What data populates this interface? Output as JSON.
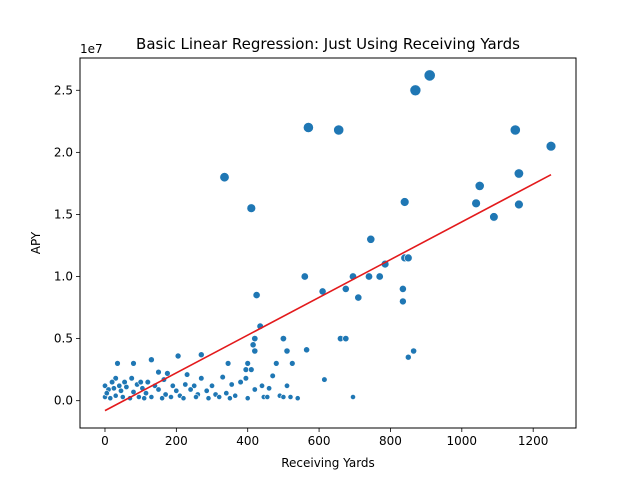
{
  "chart_data": {
    "type": "scatter",
    "title": "Basic Linear Regression: Just Using Receiving Yards",
    "xlabel": "Receiving Yards",
    "ylabel": "APY",
    "y_offset_label": "1e7",
    "xlim": [
      -70,
      1320
    ],
    "ylim": [
      -2200000,
      27600000
    ],
    "x_ticks": [
      0,
      200,
      400,
      600,
      800,
      1000,
      1200
    ],
    "x_tick_labels": [
      "0",
      "200",
      "400",
      "600",
      "800",
      "1000",
      "1200"
    ],
    "y_ticks": [
      0,
      5000000,
      10000000,
      15000000,
      20000000,
      25000000
    ],
    "y_tick_labels": [
      "0.0",
      "0.5",
      "1.0",
      "1.5",
      "2.0",
      "2.5"
    ],
    "grid": false,
    "legend": "none",
    "colors": {
      "points": "#1f77b4",
      "regression_line": "#e31a1c"
    },
    "series": [
      {
        "values_note_size": "point area grows with APY",
        "points": [
          [
            910,
            26200000
          ],
          [
            870,
            25000000
          ],
          [
            570,
            22000000
          ],
          [
            655,
            21800000
          ],
          [
            1150,
            21800000
          ],
          [
            1250,
            20500000
          ],
          [
            335,
            18000000
          ],
          [
            1160,
            18300000
          ],
          [
            1050,
            17300000
          ],
          [
            410,
            15500000
          ],
          [
            840,
            16000000
          ],
          [
            1040,
            15900000
          ],
          [
            1160,
            15800000
          ],
          [
            1090,
            14800000
          ],
          [
            745,
            13000000
          ],
          [
            785,
            11000000
          ],
          [
            840,
            11500000
          ],
          [
            850,
            11500000
          ],
          [
            560,
            10000000
          ],
          [
            695,
            10000000
          ],
          [
            740,
            10000000
          ],
          [
            770,
            10000000
          ],
          [
            610,
            8800000
          ],
          [
            675,
            9000000
          ],
          [
            835,
            9000000
          ],
          [
            710,
            8300000
          ],
          [
            835,
            8000000
          ],
          [
            425,
            8500000
          ],
          [
            435,
            6000000
          ],
          [
            420,
            5000000
          ],
          [
            500,
            5000000
          ],
          [
            660,
            5000000
          ],
          [
            675,
            5000000
          ],
          [
            565,
            4100000
          ],
          [
            510,
            4000000
          ],
          [
            865,
            4000000
          ],
          [
            850,
            3500000
          ],
          [
            415,
            4500000
          ],
          [
            420,
            4000000
          ],
          [
            270,
            3700000
          ],
          [
            35,
            3000000
          ],
          [
            80,
            3000000
          ],
          [
            130,
            3300000
          ],
          [
            205,
            3600000
          ],
          [
            345,
            3000000
          ],
          [
            400,
            3000000
          ],
          [
            480,
            3000000
          ],
          [
            525,
            3000000
          ],
          [
            150,
            2300000
          ],
          [
            175,
            2200000
          ],
          [
            230,
            2100000
          ],
          [
            395,
            2500000
          ],
          [
            410,
            2500000
          ],
          [
            395,
            1800000
          ],
          [
            470,
            2000000
          ],
          [
            615,
            1700000
          ],
          [
            270,
            1800000
          ],
          [
            330,
            1900000
          ],
          [
            30,
            1800000
          ],
          [
            75,
            1800000
          ],
          [
            120,
            1500000
          ],
          [
            165,
            1700000
          ],
          [
            20,
            1500000
          ],
          [
            55,
            1500000
          ],
          [
            90,
            1300000
          ],
          [
            140,
            1200000
          ],
          [
            190,
            1200000
          ],
          [
            225,
            1300000
          ],
          [
            250,
            1200000
          ],
          [
            300,
            1200000
          ],
          [
            355,
            1300000
          ],
          [
            380,
            1500000
          ],
          [
            440,
            1200000
          ],
          [
            460,
            1000000
          ],
          [
            510,
            1200000
          ],
          [
            0,
            1200000
          ],
          [
            10,
            900000
          ],
          [
            25,
            1000000
          ],
          [
            45,
            800000
          ],
          [
            60,
            1100000
          ],
          [
            80,
            700000
          ],
          [
            105,
            1000000
          ],
          [
            115,
            600000
          ],
          [
            150,
            900000
          ],
          [
            170,
            500000
          ],
          [
            200,
            800000
          ],
          [
            210,
            400000
          ],
          [
            240,
            900000
          ],
          [
            260,
            500000
          ],
          [
            285,
            800000
          ],
          [
            310,
            500000
          ],
          [
            340,
            600000
          ],
          [
            365,
            400000
          ],
          [
            420,
            900000
          ],
          [
            445,
            300000
          ],
          [
            490,
            400000
          ],
          [
            0,
            300000
          ],
          [
            15,
            200000
          ],
          [
            30,
            400000
          ],
          [
            50,
            300000
          ],
          [
            70,
            200000
          ],
          [
            95,
            300000
          ],
          [
            110,
            200000
          ],
          [
            130,
            300000
          ],
          [
            160,
            200000
          ],
          [
            185,
            300000
          ],
          [
            220,
            200000
          ],
          [
            255,
            300000
          ],
          [
            290,
            200000
          ],
          [
            320,
            300000
          ],
          [
            350,
            200000
          ],
          [
            400,
            200000
          ],
          [
            455,
            300000
          ],
          [
            500,
            300000
          ],
          [
            520,
            300000
          ],
          [
            540,
            200000
          ],
          [
            695,
            300000
          ],
          [
            5,
            600000
          ],
          [
            40,
            1200000
          ],
          [
            100,
            1500000
          ]
        ]
      }
    ],
    "regression_line": {
      "x": [
        0,
        1250
      ],
      "y": [
        -800000,
        18200000
      ]
    }
  }
}
